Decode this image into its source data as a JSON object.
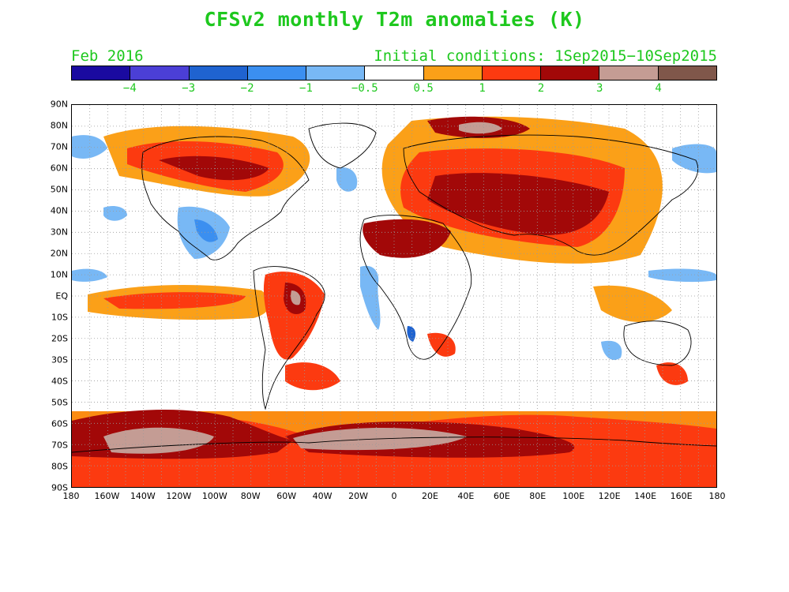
{
  "title": "CFSv2 monthly T2m anomalies (K)",
  "valid_month": "Feb 2016",
  "initial_conditions": "Initial conditions: 1Sep2015−10Sep2015",
  "colorbar": {
    "colors": [
      "#1a0aa0",
      "#4b3fd6",
      "#1f63d0",
      "#3b8ff0",
      "#78b8f5",
      "#ffffff",
      "#fba018",
      "#fc3a10",
      "#a20808",
      "#c49c94",
      "#80574a"
    ],
    "labels": [
      "−4",
      "−3",
      "−2",
      "−1",
      "−0.5",
      "0.5",
      "1",
      "2",
      "3",
      "4"
    ]
  },
  "map": {
    "projection": "cylindrical equidistant",
    "lon_range": [
      -180,
      180
    ],
    "lat_range": [
      -90,
      90
    ],
    "gridlines": "dotted every 10 degrees",
    "lat_ticks": [
      "90N",
      "80N",
      "70N",
      "60N",
      "50N",
      "40N",
      "30N",
      "20N",
      "10N",
      "EQ",
      "10S",
      "20S",
      "30S",
      "40S",
      "50S",
      "60S",
      "70S",
      "80S",
      "90S"
    ],
    "lon_ticks": [
      "180",
      "160W",
      "140W",
      "120W",
      "100W",
      "80W",
      "60W",
      "40W",
      "20W",
      "0",
      "20E",
      "40E",
      "60E",
      "80E",
      "100E",
      "120E",
      "140E",
      "160E",
      "180"
    ]
  }
}
